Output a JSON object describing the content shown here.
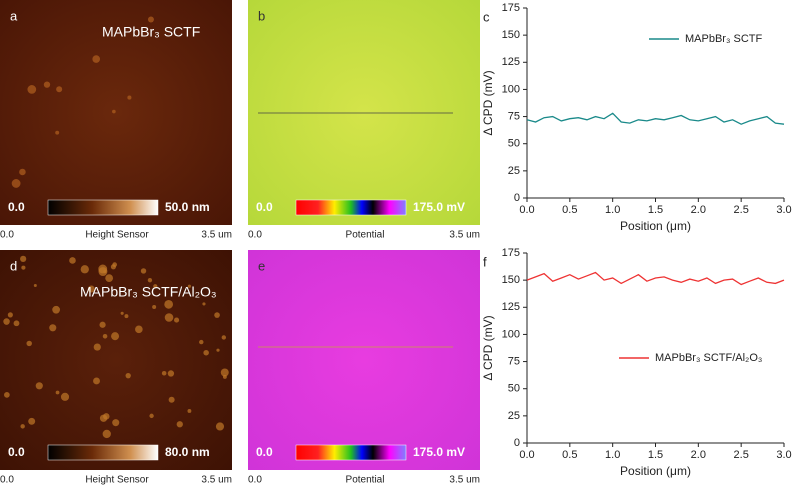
{
  "image_panels": [
    {
      "label": "a",
      "title": "MAPbBr₃ SCTF",
      "scale_min": "0.0",
      "scale_max": "50.0 nm",
      "axis_left": "0.0",
      "axis_title": "Height Sensor",
      "axis_right": "3.5 um"
    },
    {
      "label": "b",
      "scale_min": "0.0",
      "scale_max": "175.0 mV",
      "axis_left": "0.0",
      "axis_title": "Potential",
      "axis_right": "3.5 um"
    },
    {
      "label": "d",
      "title": "MAPbBr₃ SCTF/Al₂O₃",
      "scale_min": "0.0",
      "scale_max": "80.0 nm",
      "axis_left": "0.0",
      "axis_title": "Height Sensor",
      "axis_right": "3.5 um"
    },
    {
      "label": "e",
      "scale_min": "0.0",
      "scale_max": "175.0 mV",
      "axis_left": "0.0",
      "axis_title": "Potential",
      "axis_right": "3.5 um"
    }
  ],
  "chart_data": [
    {
      "type": "line",
      "panel_label": "c",
      "x_label": "Position (μm)",
      "y_label": "Δ CPD (mV)",
      "x": [
        0,
        0.1,
        0.2,
        0.3,
        0.4,
        0.5,
        0.6,
        0.7,
        0.8,
        0.9,
        1.0,
        1.1,
        1.2,
        1.3,
        1.4,
        1.5,
        1.6,
        1.7,
        1.8,
        1.9,
        2.0,
        2.1,
        2.2,
        2.3,
        2.4,
        2.5,
        2.6,
        2.7,
        2.8,
        2.9,
        3.0
      ],
      "series": [
        {
          "name": "MAPbBr₃ SCTF",
          "color": "#1a8a8a",
          "values": [
            72,
            70,
            74,
            75,
            71,
            73,
            74,
            72,
            75,
            73,
            78,
            70,
            69,
            72,
            71,
            73,
            72,
            74,
            76,
            72,
            71,
            73,
            75,
            70,
            72,
            68,
            71,
            73,
            75,
            69,
            68
          ]
        }
      ],
      "xlim": [
        0,
        3
      ],
      "ylim": [
        0,
        175
      ],
      "xticks": [
        {
          "value": 0,
          "label": "0.0"
        },
        {
          "value": 0.5,
          "label": "0.5"
        },
        {
          "value": 1,
          "label": "1.0"
        },
        {
          "value": 1.5,
          "label": "1.5"
        },
        {
          "value": 2,
          "label": "2.0"
        },
        {
          "value": 2.5,
          "label": "2.5"
        },
        {
          "value": 3,
          "label": "3.0"
        }
      ],
      "yticks": [
        0,
        25,
        50,
        75,
        100,
        125,
        150,
        175
      ],
      "legend": "upper right"
    },
    {
      "type": "line",
      "panel_label": "f",
      "x_label": "Position (μm)",
      "y_label": "Δ CPD (mV)",
      "x": [
        0,
        0.1,
        0.2,
        0.3,
        0.4,
        0.5,
        0.6,
        0.7,
        0.8,
        0.9,
        1.0,
        1.1,
        1.2,
        1.3,
        1.4,
        1.5,
        1.6,
        1.7,
        1.8,
        1.9,
        2.0,
        2.1,
        2.2,
        2.3,
        2.4,
        2.5,
        2.6,
        2.7,
        2.8,
        2.9,
        3.0
      ],
      "series": [
        {
          "name": "MAPbBr₃ SCTF/Al₂O₃",
          "color": "#ee3333",
          "values": [
            150,
            153,
            156,
            149,
            152,
            155,
            151,
            154,
            157,
            150,
            152,
            147,
            151,
            155,
            149,
            152,
            153,
            150,
            148,
            151,
            149,
            152,
            147,
            150,
            151,
            146,
            149,
            152,
            148,
            147,
            150
          ]
        }
      ],
      "xlim": [
        0,
        3
      ],
      "ylim": [
        0,
        175
      ],
      "xticks": [
        {
          "value": 0,
          "label": "0.0"
        },
        {
          "value": 0.5,
          "label": "0.5"
        },
        {
          "value": 1,
          "label": "1.0"
        },
        {
          "value": 1.5,
          "label": "1.5"
        },
        {
          "value": 2,
          "label": "2.0"
        },
        {
          "value": 2.5,
          "label": "2.5"
        },
        {
          "value": 3,
          "label": "3.0"
        }
      ],
      "yticks": [
        0,
        25,
        50,
        75,
        100,
        125,
        150,
        175
      ],
      "legend": "center right"
    }
  ]
}
